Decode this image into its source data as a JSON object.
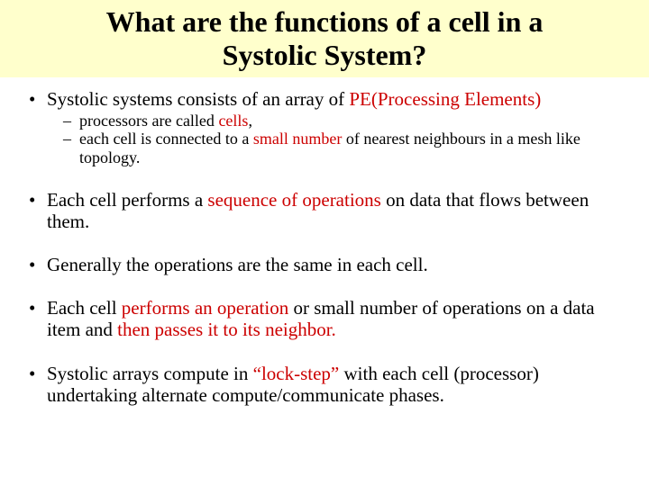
{
  "colors": {
    "title_bg": "#ffffcc",
    "slide_bg": "#ffffff",
    "text": "#000000",
    "accent_red": "#cc0000"
  },
  "typography": {
    "title_fontsize_pt": 32,
    "body_fontsize_pt": 21,
    "sub_fontsize_pt": 18,
    "font_family": "Times New Roman, serif",
    "title_weight": "bold"
  },
  "title": {
    "line1": "What are the functions of a cell in a",
    "line2": "Systolic System?"
  },
  "bullets": {
    "b1": {
      "t1": "Systolic systems consists of an array of ",
      "red1": "PE(Processing Elements)",
      "sub1": {
        "t1": "processors are called ",
        "red1": "cells",
        "t2": ","
      },
      "sub2": {
        "t1": "each cell is connected to a ",
        "red1": "small number",
        "t2": " of nearest neighbours in a mesh like topology."
      }
    },
    "b2": {
      "t1": "Each cell  performs  a ",
      "red1": "sequence of operations",
      "t2": " on data that flows between them."
    },
    "b3": {
      "t1": "Generally the operations are the same in each cell."
    },
    "b4": {
      "t1": "Each cell ",
      "red1": "performs an operation",
      "t2": " or  small number of operations on a data item and ",
      "red2": "then passes it to its neighbor.",
      "t3": ""
    },
    "b5": {
      "t1": "Systolic arrays compute in ",
      "red1": "“lock-step”",
      "t2": " with each cell (processor) undertaking alternate compute/communicate phases."
    }
  }
}
